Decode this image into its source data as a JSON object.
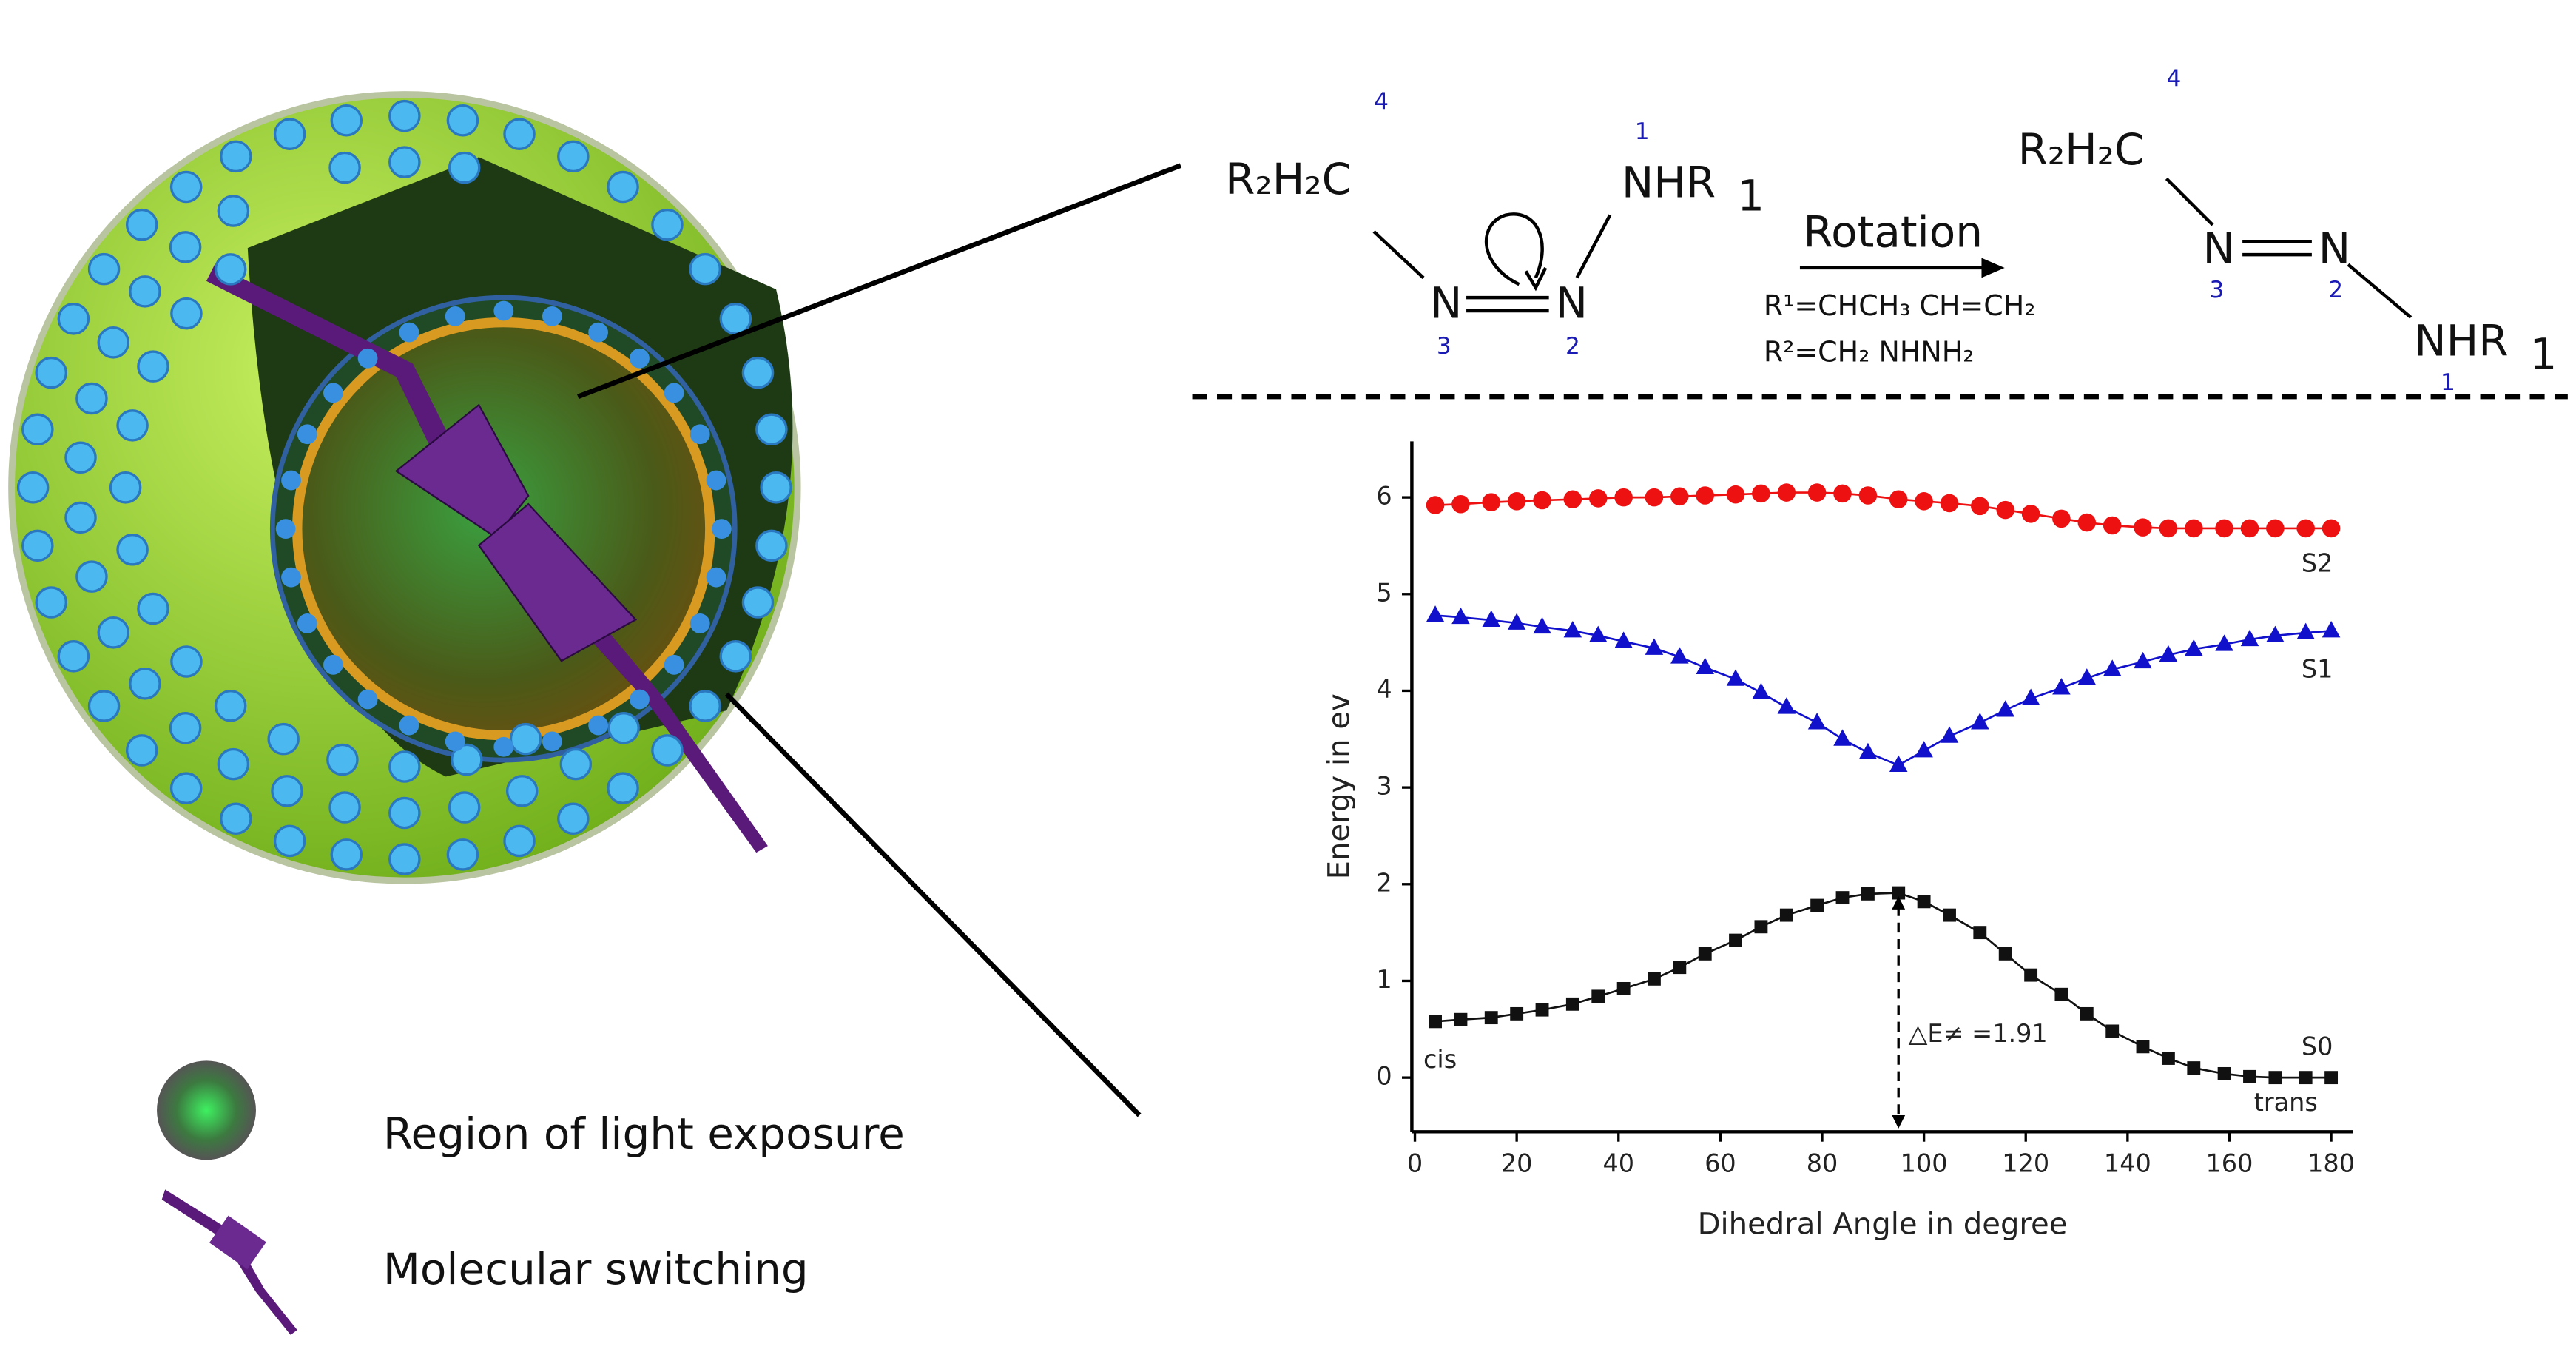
{
  "chart_data": {
    "type": "line",
    "xlabel": "Dihedral Angle in degree",
    "ylabel": "Energy in ev",
    "x": [
      4,
      9,
      15,
      20,
      25,
      31,
      36,
      41,
      47,
      52,
      57,
      63,
      68,
      73,
      79,
      84,
      89,
      95,
      100,
      105,
      111,
      116,
      121,
      127,
      132,
      137,
      143,
      148,
      153,
      159,
      164,
      169,
      175,
      180
    ],
    "series": [
      {
        "name": "S2",
        "color": "#ee1111",
        "marker": "circle",
        "values": [
          5.92,
          5.93,
          5.95,
          5.96,
          5.97,
          5.98,
          5.99,
          6.0,
          6.0,
          6.01,
          6.02,
          6.03,
          6.04,
          6.05,
          6.05,
          6.04,
          6.02,
          5.98,
          5.96,
          5.94,
          5.91,
          5.87,
          5.83,
          5.78,
          5.74,
          5.71,
          5.69,
          5.68,
          5.68,
          5.68,
          5.68,
          5.68,
          5.68,
          5.68
        ]
      },
      {
        "name": "S1",
        "color": "#1111cc",
        "marker": "triangle",
        "values": [
          4.78,
          4.76,
          4.73,
          4.7,
          4.66,
          4.62,
          4.57,
          4.51,
          4.44,
          4.35,
          4.24,
          4.12,
          3.98,
          3.83,
          3.67,
          3.5,
          3.36,
          3.23,
          3.38,
          3.53,
          3.67,
          3.8,
          3.92,
          4.03,
          4.13,
          4.22,
          4.3,
          4.37,
          4.43,
          4.48,
          4.53,
          4.57,
          4.6,
          4.62
        ]
      },
      {
        "name": "S0",
        "color": "#111111",
        "marker": "square",
        "values": [
          0.58,
          0.6,
          0.62,
          0.66,
          0.7,
          0.76,
          0.84,
          0.92,
          1.02,
          1.14,
          1.28,
          1.42,
          1.56,
          1.68,
          1.78,
          1.86,
          1.9,
          1.91,
          1.82,
          1.68,
          1.5,
          1.28,
          1.06,
          0.86,
          0.66,
          0.48,
          0.32,
          0.2,
          0.1,
          0.04,
          0.01,
          0,
          0,
          0
        ]
      }
    ],
    "xlim": [
      -0.6,
      184.3
    ],
    "ylim": [
      -0.56,
      6.58
    ],
    "xticks": [
      0,
      20,
      40,
      60,
      80,
      100,
      120,
      140,
      160,
      180
    ],
    "yticks": [
      0,
      1,
      2,
      3,
      4,
      5,
      6
    ],
    "grid": false,
    "annotation": {
      "text": "△E≠ =1.91",
      "x": 95,
      "y": 1.91
    },
    "start_label": "cis",
    "end_label": "trans"
  },
  "scheme": {
    "left_group": "R₂H₂C",
    "left_nhr": "NHR",
    "left_nhr_index": "1",
    "n": "N",
    "labels_left": [
      "4",
      "1",
      "3",
      "2"
    ],
    "arrow_text": "Rotation",
    "r1": "R¹=CHCH₃ CH=CH₂",
    "r2": "R²=CH₂ NHNH₂",
    "right_group": "R₂H₂C",
    "right_nhr": "NHR",
    "right_nhr_index": "1",
    "labels_right": [
      "4",
      "3",
      "2",
      "1"
    ]
  },
  "legend": [
    "Region of light exposure",
    "Molecular switching"
  ]
}
